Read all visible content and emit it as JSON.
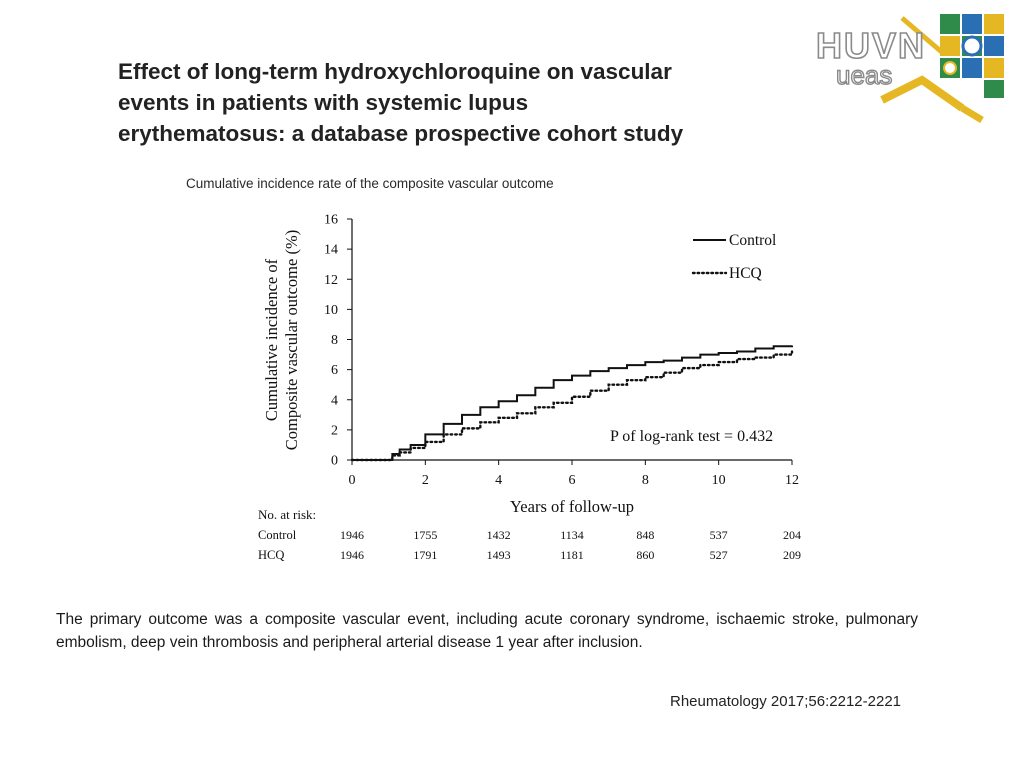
{
  "slide": {
    "title_lines": [
      "Effect of long-term hydroxychloroquine on vascular",
      "events in patients with systemic lupus",
      "erythematosus: a database prospective cohort study"
    ],
    "caption": "The primary outcome was a composite vascular event, including acute coronary syndrome, ischaemic stroke, pulmonary embolism, deep vein thrombosis and peripheral arterial disease 1 year after inclusion.",
    "citation": "Rheumatology 2017;56:2212-2221",
    "logo_text": "HUVN",
    "logo_subtext": "ueas"
  },
  "chart_data": {
    "type": "line",
    "title": "Cumulative incidence rate of the composite vascular outcome",
    "xlabel": "Years of follow-up",
    "ylabel_lines": [
      "Cumulative incidence of",
      "Composite vascular outcome (%)"
    ],
    "xlim": [
      0,
      12
    ],
    "ylim": [
      0,
      16
    ],
    "xticks": [
      0,
      2,
      4,
      6,
      8,
      10,
      12
    ],
    "yticks": [
      0,
      2,
      4,
      6,
      8,
      10,
      12,
      14,
      16
    ],
    "grid": false,
    "legend_position": "top-right",
    "annotation": "P  of log-rank test = 0.432",
    "series": [
      {
        "name": "Control",
        "style": "solid",
        "x": [
          0,
          0.5,
          1.0,
          1.1,
          1.3,
          1.6,
          2.0,
          2.5,
          3.0,
          3.5,
          4.0,
          4.5,
          5.0,
          5.5,
          6.0,
          6.5,
          7.0,
          7.5,
          8.0,
          8.5,
          9.0,
          9.5,
          10.0,
          10.5,
          11.0,
          11.5,
          12.0
        ],
        "y": [
          0,
          0,
          0,
          0.4,
          0.7,
          1.0,
          1.7,
          2.4,
          3.0,
          3.5,
          3.9,
          4.3,
          4.8,
          5.3,
          5.6,
          5.9,
          6.1,
          6.3,
          6.5,
          6.6,
          6.8,
          7.0,
          7.1,
          7.2,
          7.4,
          7.55,
          7.6
        ]
      },
      {
        "name": "HCQ",
        "style": "dotted",
        "x": [
          0,
          0.5,
          1.0,
          1.1,
          1.3,
          1.6,
          2.0,
          2.5,
          3.0,
          3.5,
          4.0,
          4.5,
          5.0,
          5.5,
          6.0,
          6.5,
          7.0,
          7.5,
          8.0,
          8.5,
          9.0,
          9.5,
          10.0,
          10.5,
          11.0,
          11.5,
          12.0
        ],
        "y": [
          0,
          0,
          0,
          0.3,
          0.5,
          0.8,
          1.2,
          1.7,
          2.1,
          2.5,
          2.8,
          3.1,
          3.5,
          3.8,
          4.2,
          4.6,
          5.0,
          5.3,
          5.5,
          5.8,
          6.1,
          6.3,
          6.5,
          6.7,
          6.8,
          7.0,
          7.2
        ]
      }
    ],
    "risk_table": {
      "title": "No. at risk:",
      "times": [
        0,
        2,
        4,
        6,
        8,
        10,
        12
      ],
      "rows": [
        {
          "label": "Control",
          "values": [
            "1946",
            "1755",
            "1432",
            "1134",
            "848",
            "537",
            "204"
          ]
        },
        {
          "label": "HCQ",
          "values": [
            "1946",
            "1791",
            "1493",
            "1181",
            "860",
            "527",
            "209"
          ]
        }
      ]
    }
  },
  "colors": {
    "text": "#1a1a1a",
    "logo_blue": "#2a6fb4",
    "logo_green": "#2e8b4a",
    "logo_gold": "#e5b823",
    "logo_gray": "#9a9a9a"
  }
}
